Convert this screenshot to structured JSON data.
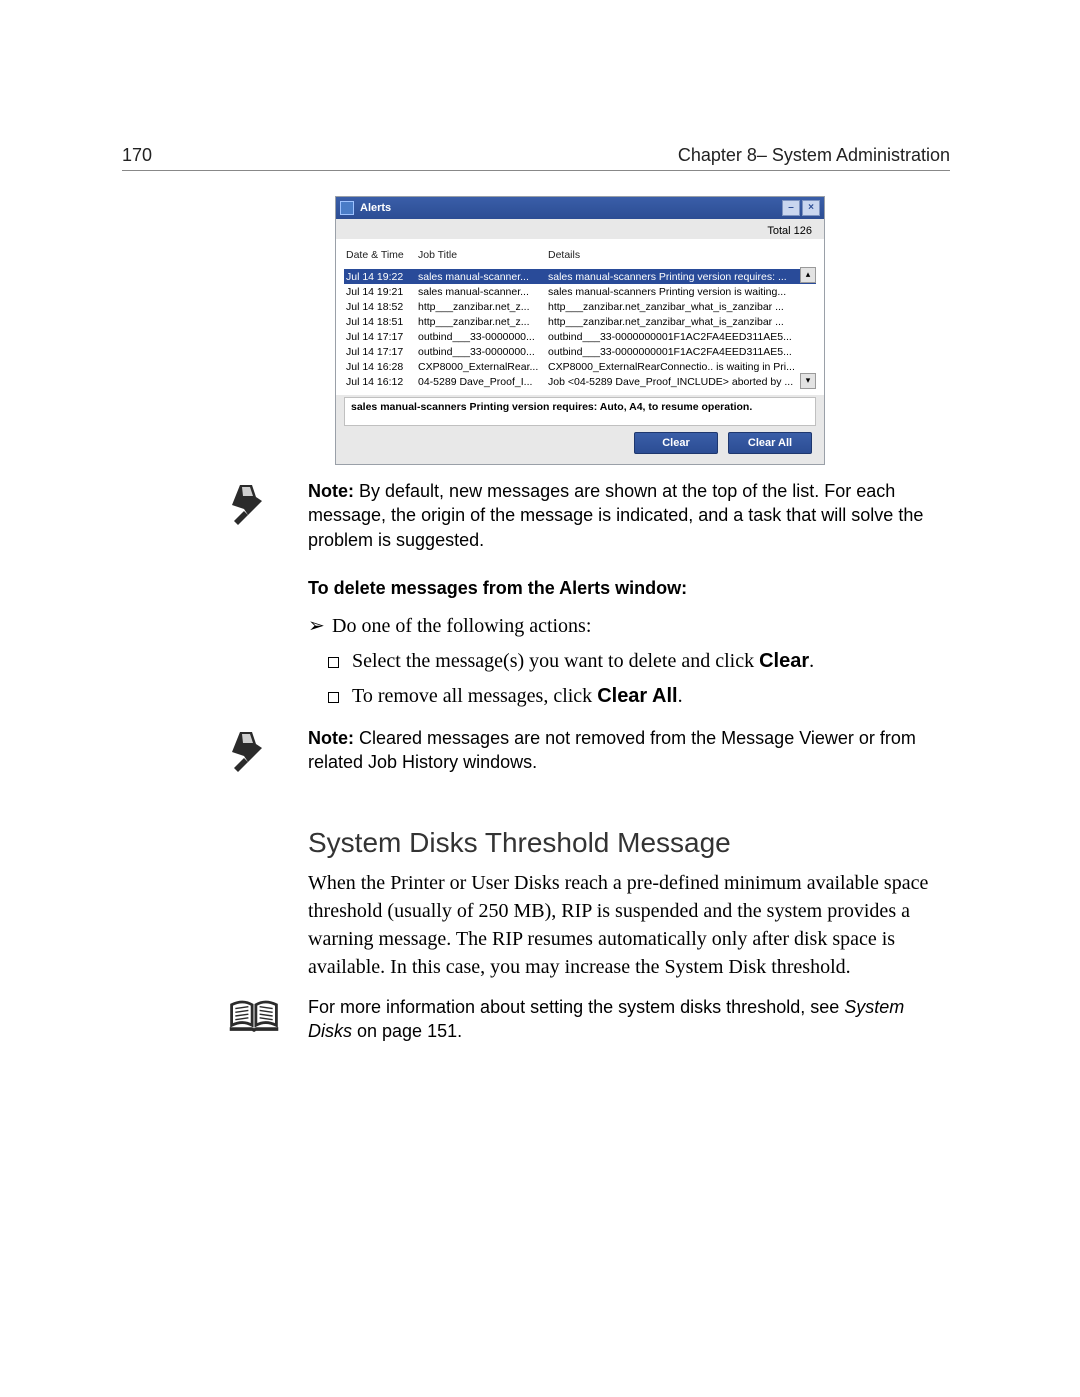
{
  "header": {
    "page_number": "170",
    "chapter": "Chapter 8– System Administration"
  },
  "alerts_window": {
    "title": "Alerts",
    "total_label": "Total 126",
    "columns": {
      "date": "Date & Time",
      "job": "Job Title",
      "details": "Details"
    },
    "rows": [
      {
        "date": "Jul 14 19:22",
        "job": "sales manual-scanner...",
        "details": "sales manual-scanners Printing version requires: ...",
        "selected": true
      },
      {
        "date": "Jul 14 19:21",
        "job": "sales manual-scanner...",
        "details": "sales manual-scanners Printing version is waiting...",
        "selected": false
      },
      {
        "date": "Jul 14 18:52",
        "job": "http___zanzibar.net_z...",
        "details": "http___zanzibar.net_zanzibar_what_is_zanzibar ...",
        "selected": false
      },
      {
        "date": "Jul 14 18:51",
        "job": "http___zanzibar.net_z...",
        "details": "http___zanzibar.net_zanzibar_what_is_zanzibar ...",
        "selected": false
      },
      {
        "date": "Jul 14 17:17",
        "job": "outbind___33-0000000...",
        "details": "outbind___33-0000000001F1AC2FA4EED311AE5...",
        "selected": false
      },
      {
        "date": "Jul 14 17:17",
        "job": "outbind___33-0000000...",
        "details": "outbind___33-0000000001F1AC2FA4EED311AE5...",
        "selected": false
      },
      {
        "date": "Jul 14 16:28",
        "job": "CXP8000_ExternalRear...",
        "details": "CXP8000_ExternalRearConnectio.. is waiting in Pri...",
        "selected": false
      },
      {
        "date": "Jul 14 16:12",
        "job": "04-5289 Dave_Proof_I...",
        "details": "Job <04-5289 Dave_Proof_INCLUDE> aborted by ...",
        "selected": false
      }
    ],
    "detail_bar": "sales manual-scanners Printing version requires: Auto, A4,  to resume operation.",
    "buttons": {
      "clear": "Clear",
      "clear_all": "Clear All"
    },
    "colors": {
      "titlebar_top": "#3a5ea8",
      "titlebar_bottom": "#2c4d94",
      "selection": "#294b99",
      "background": "#e8e8e8"
    }
  },
  "note1": {
    "lead": "Note:  ",
    "text": "By default, new messages are shown at the top of the list. For each message, the origin of the message is indicated, and a task that will solve the problem is suggested."
  },
  "delete_section": {
    "heading": "To delete messages from the Alerts window:",
    "arrow_line": "Do one of the following actions:",
    "item1_pre": "Select the message(s) you want to delete and click ",
    "item1_bold": "Clear",
    "item1_post": ".",
    "item2_pre": "To remove all messages, click ",
    "item2_bold": "Clear All",
    "item2_post": "."
  },
  "note2": {
    "lead": "Note:  ",
    "text": "Cleared messages are not removed from the Message Viewer or from related Job History windows."
  },
  "threshold": {
    "heading": "System Disks Threshold Message",
    "body": "When the Printer or User Disks reach a pre-defined minimum available space threshold (usually of 250 MB), RIP is suspended and the system provides a warning message. The RIP resumes automatically only after disk space is available. In this case, you may increase the System Disk threshold."
  },
  "crossref": {
    "pre": "For more information about setting the system disks threshold, see ",
    "italic": "System Disks",
    "post": " on page 151."
  }
}
